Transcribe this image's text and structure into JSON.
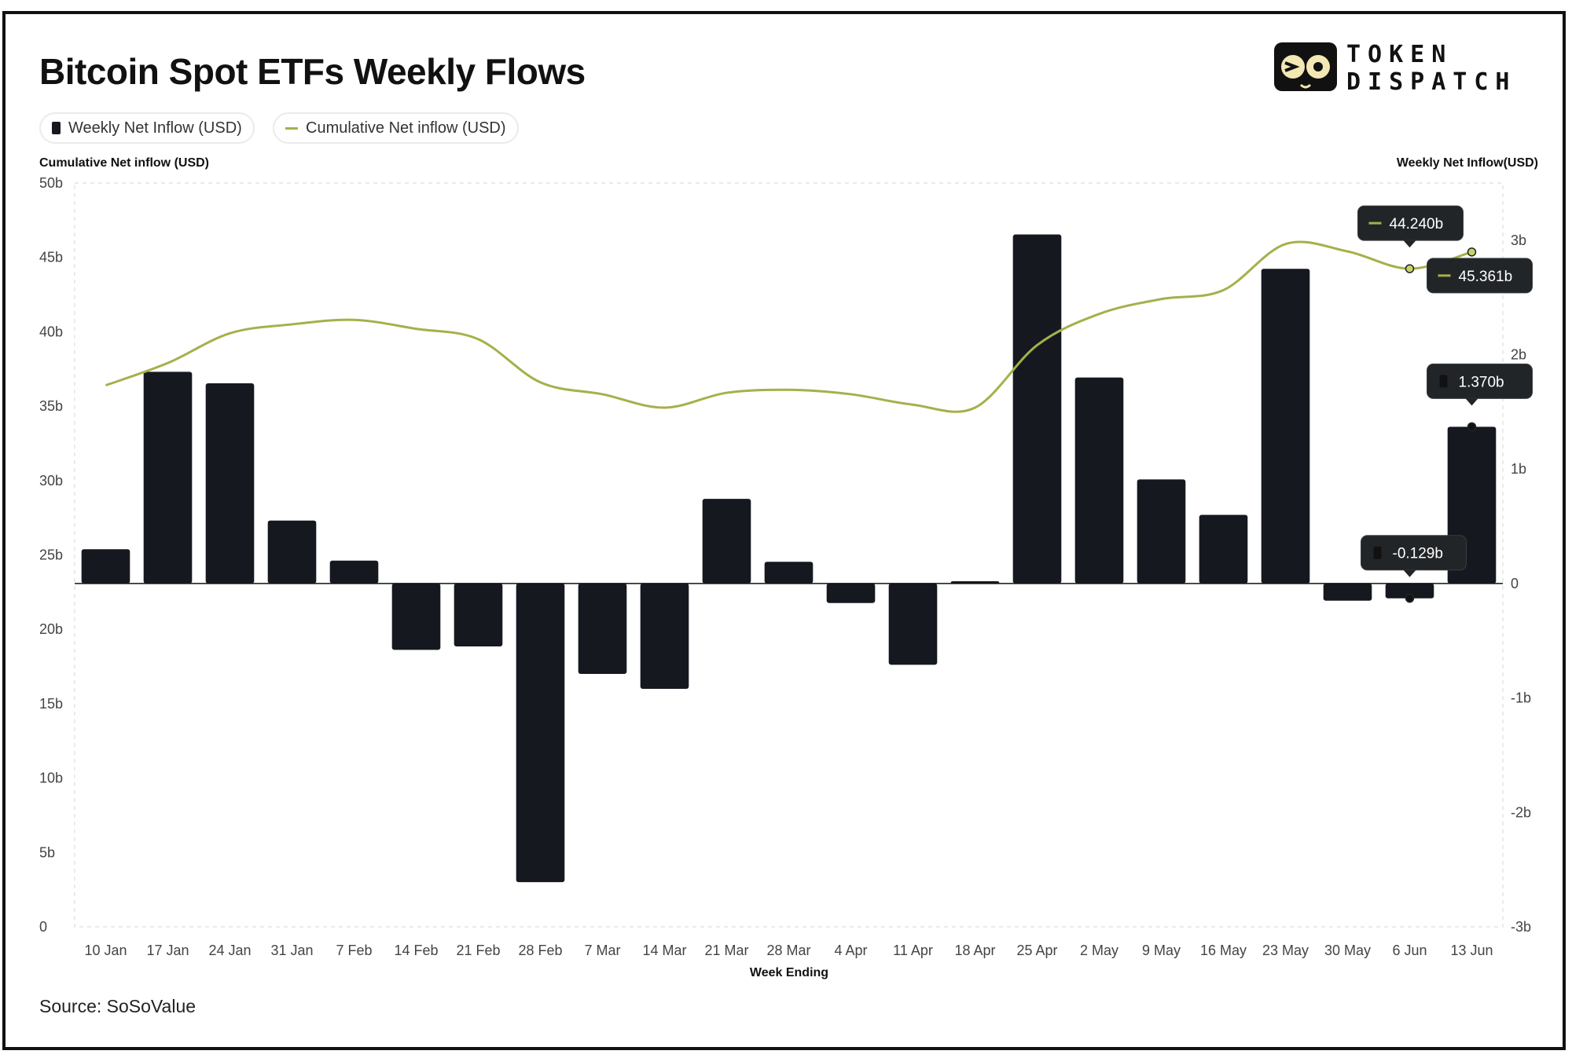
{
  "title": "Bitcoin Spot ETFs Weekly Flows",
  "legend": [
    {
      "label": "Weekly Net Inflow (USD)",
      "kind": "bar",
      "color": "#15191f"
    },
    {
      "label": "Cumulative Net inflow (USD)",
      "kind": "line",
      "color": "#a6b04a"
    }
  ],
  "logo": {
    "line1": "TOKEN",
    "line2": "DISPATCH"
  },
  "source": "Source: SoSoValue",
  "chart_data": {
    "type": "bar+line",
    "title": "Bitcoin Spot ETFs Weekly Flows",
    "xlabel": "Week Ending",
    "ylabel_left": "Cumulative Net inflow (USD)",
    "ylabel_right": "Weekly Net Inflow(USD)",
    "categories": [
      "10 Jan",
      "17 Jan",
      "24 Jan",
      "31 Jan",
      "7 Feb",
      "14 Feb",
      "21 Feb",
      "28 Feb",
      "7 Mar",
      "14 Mar",
      "21 Mar",
      "28 Mar",
      "4 Apr",
      "11 Apr",
      "18 Apr",
      "25 Apr",
      "2 May",
      "9 May",
      "16 May",
      "23 May",
      "30 May",
      "6 Jun",
      "13 Jun"
    ],
    "series": [
      {
        "name": "Weekly Net Inflow (USD)",
        "type": "bar",
        "axis": "right",
        "unit": "b",
        "values": [
          0.3,
          1.85,
          1.75,
          0.55,
          0.2,
          -0.58,
          -0.55,
          -2.61,
          -0.79,
          -0.92,
          0.74,
          0.19,
          -0.17,
          -0.71,
          0.02,
          3.05,
          1.8,
          0.91,
          0.6,
          2.75,
          -0.15,
          -0.129,
          1.37
        ]
      },
      {
        "name": "Cumulative Net inflow (USD)",
        "type": "line",
        "axis": "left",
        "unit": "b",
        "values": [
          36.4,
          37.9,
          39.9,
          40.5,
          40.8,
          40.2,
          39.5,
          36.6,
          35.8,
          34.9,
          35.9,
          36.1,
          35.8,
          35.1,
          34.9,
          39.1,
          41.2,
          42.2,
          42.8,
          45.9,
          45.4,
          44.24,
          45.361
        ]
      }
    ],
    "left_axis": {
      "ylim": [
        0,
        50
      ],
      "ticks": [
        "0",
        "5b",
        "10b",
        "15b",
        "20b",
        "25b",
        "30b",
        "35b",
        "40b",
        "45b",
        "50b"
      ]
    },
    "right_axis": {
      "ylim": [
        -3,
        3.5
      ],
      "ticks": [
        "-3b",
        "-2b",
        "-1b",
        "0",
        "1b",
        "2b",
        "3b"
      ],
      "tick_values": [
        -3,
        -2,
        -1,
        0,
        1,
        2,
        3
      ]
    },
    "tooltips": [
      {
        "series": "Cumulative Net inflow (USD)",
        "category": "6 Jun",
        "label": "44.240b"
      },
      {
        "series": "Cumulative Net inflow (USD)",
        "category": "13 Jun",
        "label": "45.361b"
      },
      {
        "series": "Weekly Net Inflow (USD)",
        "category": "13 Jun",
        "label": "1.370b"
      },
      {
        "series": "Weekly Net Inflow (USD)",
        "category": "6 Jun",
        "label": "-0.129b"
      }
    ],
    "grid": "dashed"
  }
}
